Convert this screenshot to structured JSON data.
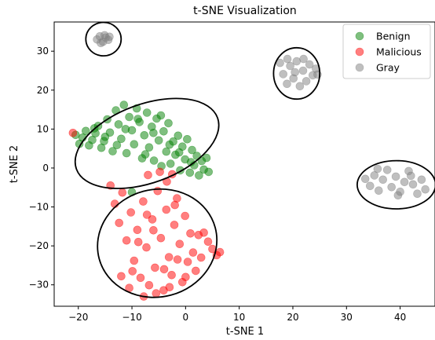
{
  "chart_data": {
    "type": "scatter",
    "title": "t-SNE Visualization",
    "xlabel": "t-SNE 1",
    "ylabel": "t-SNE 2",
    "xlim": [
      -24.5,
      46.5
    ],
    "ylim": [
      -35.5,
      37.5
    ],
    "xticks": [
      -20,
      -10,
      0,
      10,
      20,
      30,
      40
    ],
    "yticks": [
      -30,
      -20,
      -10,
      0,
      10,
      20,
      30
    ],
    "grid": false,
    "legend_position": "top-right",
    "series": [
      {
        "name": "Benign",
        "color": "#008000",
        "points": [
          [
            -20.5,
            8.5
          ],
          [
            -19.8,
            6.2
          ],
          [
            -19.2,
            7.8
          ],
          [
            -18.6,
            9.5
          ],
          [
            -18.0,
            5.8
          ],
          [
            -17.4,
            7.2
          ],
          [
            -16.8,
            8.9
          ],
          [
            -16.3,
            10.8
          ],
          [
            -15.7,
            5.2
          ],
          [
            -15.2,
            6.9
          ],
          [
            -14.6,
            12.5
          ],
          [
            -14.1,
            9.1
          ],
          [
            -13.6,
            4.3
          ],
          [
            -13.0,
            14.8
          ],
          [
            -12.5,
            11.2
          ],
          [
            -12.0,
            7.5
          ],
          [
            -11.5,
            16.2
          ],
          [
            -11.0,
            3.8
          ],
          [
            -10.5,
            13.1
          ],
          [
            -10.0,
            9.7
          ],
          [
            -9.6,
            6.1
          ],
          [
            -9.1,
            15.3
          ],
          [
            -8.6,
            11.8
          ],
          [
            -8.1,
            2.5
          ],
          [
            -7.7,
            8.4
          ],
          [
            -7.2,
            14.2
          ],
          [
            -6.8,
            5.3
          ],
          [
            -6.3,
            10.6
          ],
          [
            -5.9,
            1.9
          ],
          [
            -5.4,
            12.7
          ],
          [
            -5.0,
            7.1
          ],
          [
            -4.5,
            0.5
          ],
          [
            -4.1,
            9.4
          ],
          [
            -3.6,
            4.2
          ],
          [
            -3.2,
            11.5
          ],
          [
            -2.8,
            1.1
          ],
          [
            -2.3,
            6.8
          ],
          [
            -1.9,
            3.4
          ],
          [
            -1.4,
            8.3
          ],
          [
            -1.0,
            -0.6
          ],
          [
            -0.6,
            5.5
          ],
          [
            -0.1,
            2.2
          ],
          [
            0.3,
            7.4
          ],
          [
            0.8,
            -1.2
          ],
          [
            1.2,
            4.6
          ],
          [
            1.6,
            0.7
          ],
          [
            2.1,
            3.1
          ],
          [
            2.5,
            -1.9
          ],
          [
            3.0,
            1.8
          ],
          [
            3.4,
            -0.4
          ],
          [
            3.9,
            2.6
          ],
          [
            4.3,
            -1.0
          ],
          [
            -10.0,
            -6.2
          ],
          [
            -17.0,
            10.2
          ],
          [
            -12.8,
            5.9
          ],
          [
            -8.9,
            12.6
          ],
          [
            -6.0,
            9.0
          ],
          [
            -3.0,
            6.0
          ],
          [
            -1.2,
            4.0
          ],
          [
            1.0,
            1.5
          ],
          [
            -15.0,
            8.0
          ],
          [
            -11.2,
            10.0
          ],
          [
            -7.5,
            3.5
          ],
          [
            -4.6,
            13.5
          ]
        ]
      },
      {
        "name": "Malicious",
        "color": "#ff0000",
        "points": [
          [
            -21.0,
            9.0
          ],
          [
            -14.0,
            -4.5
          ],
          [
            -13.2,
            -9.2
          ],
          [
            -12.4,
            -14.1
          ],
          [
            -11.8,
            -6.3
          ],
          [
            -11.0,
            -18.6
          ],
          [
            -10.2,
            -11.4
          ],
          [
            -9.6,
            -23.8
          ],
          [
            -9.0,
            -15.9
          ],
          [
            -8.4,
            -28.2
          ],
          [
            -7.9,
            -8.6
          ],
          [
            -7.3,
            -20.4
          ],
          [
            -6.8,
            -30.1
          ],
          [
            -6.2,
            -13.2
          ],
          [
            -5.7,
            -25.6
          ],
          [
            -5.2,
            -5.9
          ],
          [
            -4.6,
            -18.0
          ],
          [
            -4.1,
            -31.4
          ],
          [
            -3.6,
            -10.7
          ],
          [
            -3.1,
            -22.9
          ],
          [
            -2.6,
            -27.5
          ],
          [
            -2.1,
            -14.6
          ],
          [
            -1.6,
            -7.8
          ],
          [
            -1.1,
            -19.5
          ],
          [
            -0.6,
            -29.3
          ],
          [
            -0.1,
            -12.3
          ],
          [
            0.4,
            -24.1
          ],
          [
            0.9,
            -16.8
          ],
          [
            1.4,
            -21.7
          ],
          [
            1.9,
            -26.4
          ],
          [
            2.4,
            -17.2
          ],
          [
            2.9,
            -23.0
          ],
          [
            3.4,
            -16.6
          ],
          [
            4.2,
            -18.9
          ],
          [
            5.0,
            -20.8
          ],
          [
            5.8,
            -22.4
          ],
          [
            6.4,
            -21.6
          ],
          [
            -7.0,
            -1.8
          ],
          [
            -4.8,
            -1.0
          ],
          [
            -2.5,
            -1.6
          ],
          [
            -10.5,
            -30.8
          ],
          [
            -7.8,
            -33.0
          ],
          [
            -5.5,
            -32.2
          ],
          [
            -3.0,
            -30.6
          ],
          [
            -8.8,
            -19.0
          ],
          [
            -6.0,
            -16.0
          ],
          [
            -4.0,
            -26.0
          ],
          [
            -1.5,
            -23.5
          ],
          [
            0.0,
            -28.0
          ],
          [
            -12.0,
            -27.8
          ],
          [
            -9.9,
            -26.5
          ],
          [
            -7.2,
            -12.0
          ],
          [
            -3.5,
            -3.5
          ],
          [
            -2.0,
            -9.5
          ]
        ]
      },
      {
        "name": "Gray",
        "color": "#808080",
        "points": [
          [
            -16.5,
            33.0
          ],
          [
            -16.0,
            33.8
          ],
          [
            -15.4,
            32.4
          ],
          [
            -14.9,
            33.5
          ],
          [
            -14.4,
            32.9
          ],
          [
            -15.8,
            32.1
          ],
          [
            -15.1,
            34.1
          ],
          [
            -14.2,
            33.7
          ],
          [
            17.6,
            27.0
          ],
          [
            18.2,
            24.1
          ],
          [
            18.9,
            21.6
          ],
          [
            19.5,
            26.2
          ],
          [
            20.1,
            23.0
          ],
          [
            20.7,
            27.4
          ],
          [
            21.3,
            21.0
          ],
          [
            21.9,
            25.0
          ],
          [
            22.5,
            22.3
          ],
          [
            23.1,
            26.6
          ],
          [
            23.7,
            23.8
          ],
          [
            24.3,
            25.5
          ],
          [
            19.0,
            28.0
          ],
          [
            22.0,
            28.0
          ],
          [
            20.4,
            24.6
          ],
          [
            24.6,
            24.0
          ],
          [
            33.5,
            -2.8
          ],
          [
            34.4,
            -4.6
          ],
          [
            35.2,
            -1.9
          ],
          [
            36.0,
            -5.8
          ],
          [
            36.8,
            -3.0
          ],
          [
            37.6,
            -0.5
          ],
          [
            38.4,
            -4.9
          ],
          [
            39.2,
            -2.2
          ],
          [
            40.0,
            -6.1
          ],
          [
            40.8,
            -3.6
          ],
          [
            41.6,
            -0.8
          ],
          [
            42.4,
            -4.2
          ],
          [
            43.2,
            -6.6
          ],
          [
            44.0,
            -3.0
          ],
          [
            44.7,
            -5.5
          ],
          [
            35.8,
            -0.2
          ],
          [
            39.6,
            -7.0
          ],
          [
            42.0,
            -2.0
          ]
        ]
      }
    ],
    "ellipses": [
      {
        "cx": -15.3,
        "cy": 33.1,
        "rx": 3.3,
        "ry": 4.3,
        "angle": 0
      },
      {
        "cx": 20.7,
        "cy": 24.3,
        "rx": 4.3,
        "ry": 6.6,
        "angle": 0
      },
      {
        "cx": 39.3,
        "cy": -4.3,
        "rx": 7.3,
        "ry": 6.2,
        "angle": 0
      },
      {
        "cx": -7.2,
        "cy": 6.3,
        "rx": 14.0,
        "ry": 10.1,
        "angle": -20
      },
      {
        "cx": -5.3,
        "cy": -19.3,
        "rx": 11.2,
        "ry": 13.8,
        "angle": -15
      }
    ]
  }
}
